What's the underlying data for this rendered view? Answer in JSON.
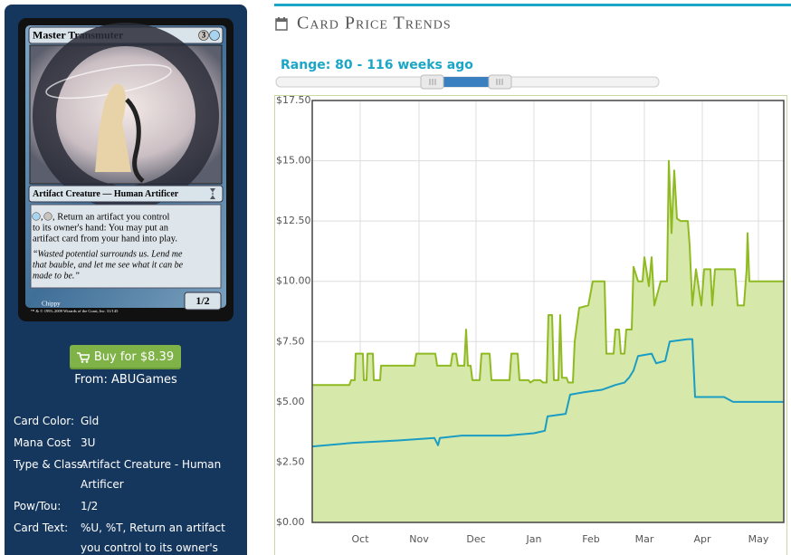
{
  "card": {
    "name": "Master Transmuter",
    "mana_cost": "3",
    "type_line": "Artifact Creature — Human Artificer",
    "rules_text": [
      ",",
      ", Return an artifact you control",
      "to its owner's hand: You may put an",
      "artifact card from your hand into play."
    ],
    "flavor_text": [
      "“Wasted potential surrounds us. Lend me",
      "that bauble, and let me see what it can be",
      "made to be.”"
    ],
    "power_toughness": "1/2",
    "artist": "Chippy",
    "copyright": "™ & © 1993–2009 Wizards of the Coast, Inc. 31/145"
  },
  "purchase": {
    "button": "Buy for $8.39",
    "seller": "From: ABUGames"
  },
  "details": [
    {
      "label": "Card Color:",
      "value": "Gld"
    },
    {
      "label": "Mana Cost",
      "value": "3U"
    },
    {
      "label": "Type & Class:",
      "value": "Artifact Creature - Human Artificer"
    },
    {
      "label": "Pow/Tou:",
      "value": "1/2"
    },
    {
      "label": "Card Text:",
      "value": "%U, %T, Return an artifact you control to its owner's hand: You"
    }
  ],
  "chart_data": {
    "type": "area",
    "title": "Card Price Trends",
    "range_label": "Range: 80 - 116 weeks ago",
    "xlim": [
      0,
      521
    ],
    "xticks": [
      {
        "value": 53,
        "label": "Oct"
      },
      {
        "value": 118,
        "label": "Nov"
      },
      {
        "value": 181,
        "label": "Dec"
      },
      {
        "value": 245,
        "label": "Jan"
      },
      {
        "value": 308,
        "label": "Feb"
      },
      {
        "value": 367,
        "label": "Mar"
      },
      {
        "value": 431,
        "label": "Apr"
      },
      {
        "value": 493,
        "label": "May"
      }
    ],
    "ylim": [
      0,
      17.5
    ],
    "yticks": [
      {
        "value": 0,
        "label": "$0.00"
      },
      {
        "value": 2.5,
        "label": "$2.50"
      },
      {
        "value": 5,
        "label": "$5.00"
      },
      {
        "value": 7.5,
        "label": "$7.50"
      },
      {
        "value": 10,
        "label": "$10.00"
      },
      {
        "value": 12.5,
        "label": "$12.50"
      },
      {
        "value": 15,
        "label": "$15.00"
      },
      {
        "value": 17.5,
        "label": "$17.50"
      }
    ],
    "grid": true,
    "series": [
      {
        "color": "#8fba22",
        "fill": "#d4e8a6",
        "x": [
          0,
          41,
          43,
          47,
          48,
          56,
          57,
          60,
          61,
          67,
          68,
          75,
          76,
          113,
          115,
          136,
          138,
          153,
          155,
          159,
          161,
          168,
          170,
          172,
          175,
          177,
          185,
          187,
          196,
          198,
          218,
          220,
          227,
          229,
          239,
          241,
          245,
          252,
          255,
          259,
          261,
          265,
          267,
          272,
          274,
          276,
          281,
          283,
          288,
          290,
          295,
          305,
          310,
          323,
          325,
          333,
          335,
          339,
          341,
          345,
          347,
          353,
          355,
          360,
          365,
          367,
          372,
          375,
          378,
          385,
          392,
          394,
          397,
          400,
          403,
          407,
          415,
          417,
          420,
          424,
          430,
          433,
          440,
          442,
          445,
          467,
          470,
          477,
          480,
          481,
          483,
          521
        ],
        "values": [
          5.7,
          5.7,
          5.9,
          5.9,
          7.0,
          7.0,
          5.9,
          5.9,
          7.0,
          7.0,
          5.9,
          5.9,
          6.5,
          6.5,
          7.0,
          7.0,
          6.5,
          6.5,
          7.0,
          7.0,
          6.5,
          6.5,
          8.0,
          6.5,
          6.5,
          5.9,
          5.9,
          7.0,
          7.0,
          5.9,
          5.9,
          7.0,
          7.0,
          5.9,
          5.9,
          5.8,
          5.9,
          5.9,
          5.8,
          5.8,
          8.6,
          8.6,
          5.9,
          5.9,
          8.6,
          6.0,
          6.0,
          5.8,
          5.8,
          7.5,
          8.9,
          9.0,
          10.0,
          10.0,
          7.0,
          7.0,
          8.0,
          8.0,
          7.0,
          7.0,
          8.0,
          8.0,
          10.6,
          10.0,
          10.0,
          11.0,
          9.8,
          11.0,
          9.0,
          10.0,
          10.0,
          15.0,
          12.0,
          14.6,
          12.6,
          12.5,
          12.5,
          11.5,
          9.0,
          10.5,
          9.0,
          10.5,
          10.5,
          9.0,
          10.5,
          10.5,
          9.0,
          9.0,
          10.5,
          12.0,
          10.0,
          10.0
        ]
      },
      {
        "color": "#1b9cc2",
        "x": [
          0,
          45,
          95,
          135,
          139,
          141,
          165,
          215,
          245,
          257,
          260,
          280,
          285,
          300,
          320,
          335,
          345,
          350,
          355,
          360,
          375,
          380,
          390,
          395,
          415,
          420,
          423,
          455,
          465,
          521
        ],
        "values": [
          3.15,
          3.3,
          3.4,
          3.5,
          3.2,
          3.5,
          3.6,
          3.6,
          3.7,
          3.8,
          4.4,
          4.5,
          5.3,
          5.4,
          5.5,
          5.7,
          5.8,
          6.0,
          6.3,
          6.9,
          7.0,
          6.6,
          6.7,
          7.5,
          7.6,
          7.6,
          5.2,
          5.2,
          5.0,
          5.0
        ]
      }
    ]
  }
}
